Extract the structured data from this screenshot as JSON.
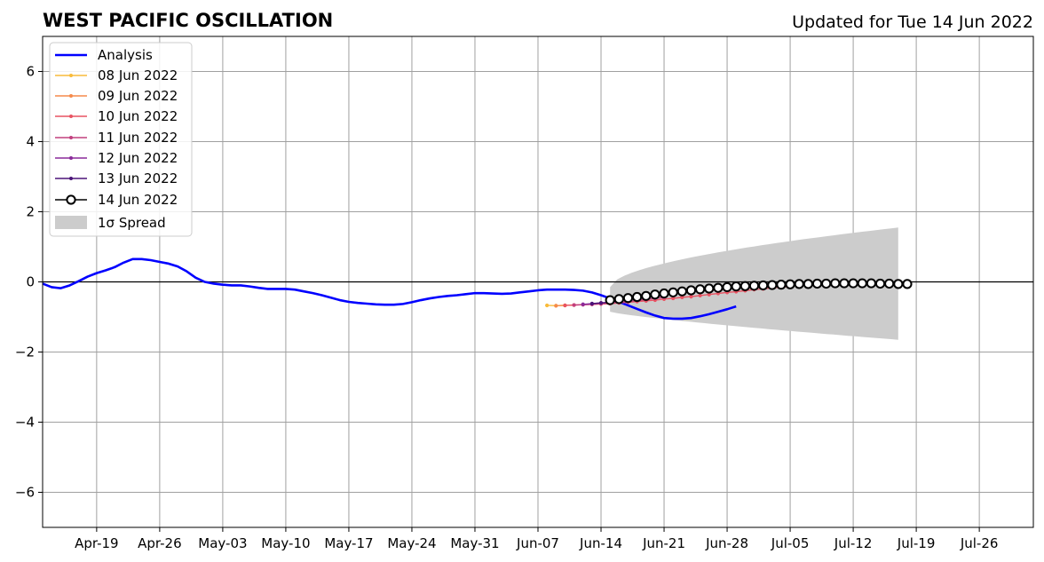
{
  "header": {
    "title": "WEST PACIFIC OSCILLATION",
    "updated": "Updated for Tue 14 Jun 2022"
  },
  "chart_data": {
    "type": "line",
    "title": "WEST PACIFIC OSCILLATION",
    "xlabel": "",
    "ylabel": "",
    "x_range": [
      "2022-04-13",
      "2022-08-01"
    ],
    "ylim": [
      -7,
      7
    ],
    "x_ticks": [
      "Apr-19",
      "Apr-26",
      "May-03",
      "May-10",
      "May-17",
      "May-24",
      "May-31",
      "Jun-07",
      "Jun-14",
      "Jun-21",
      "Jun-28",
      "Jul-05",
      "Jul-12",
      "Jul-19",
      "Jul-26"
    ],
    "y_ticks": [
      "6",
      "4",
      "2",
      "0",
      "−2",
      "−4",
      "−6"
    ],
    "grid": true,
    "legend_position": "top-left",
    "analysis": {
      "name": "Analysis",
      "color": "#0000ff",
      "start": "2022-04-13",
      "values": [
        -0.05,
        -0.15,
        -0.18,
        -0.1,
        0.02,
        0.15,
        0.25,
        0.33,
        0.42,
        0.55,
        0.65,
        0.65,
        0.62,
        0.57,
        0.52,
        0.44,
        0.3,
        0.12,
        -0.0,
        -0.05,
        -0.08,
        -0.1,
        -0.1,
        -0.13,
        -0.17,
        -0.2,
        -0.2,
        -0.2,
        -0.22,
        -0.27,
        -0.32,
        -0.38,
        -0.45,
        -0.52,
        -0.57,
        -0.6,
        -0.62,
        -0.64,
        -0.65,
        -0.65,
        -0.63,
        -0.58,
        -0.52,
        -0.47,
        -0.43,
        -0.4,
        -0.38,
        -0.35,
        -0.32,
        -0.32,
        -0.33,
        -0.34,
        -0.33,
        -0.3,
        -0.27,
        -0.24,
        -0.22,
        -0.22,
        -0.22,
        -0.23,
        -0.25,
        -0.3,
        -0.38,
        -0.47,
        -0.57,
        -0.67,
        -0.77,
        -0.87,
        -0.96,
        -1.03,
        -1.05,
        -1.05,
        -1.03,
        -0.98,
        -0.92,
        -0.85,
        -0.78,
        -0.7
      ]
    },
    "forecasts": [
      {
        "name": "08 Jun 2022",
        "color": "#f9bb3a",
        "start": "2022-06-08",
        "values": [
          -0.67,
          -0.68,
          -0.67
        ]
      },
      {
        "name": "09 Jun 2022",
        "color": "#f58a4b",
        "start": "2022-06-09",
        "values": [
          -0.68,
          -0.67,
          -0.66
        ]
      },
      {
        "name": "10 Jun 2022",
        "color": "#e85362",
        "start": "2022-06-10",
        "values": [
          -0.67,
          -0.66,
          -0.65,
          -0.64,
          -0.63,
          -0.62,
          -0.6,
          -0.58,
          -0.56,
          -0.54,
          -0.52,
          -0.49,
          -0.47,
          -0.44,
          -0.42,
          -0.39,
          -0.36,
          -0.33,
          -0.3,
          -0.28,
          -0.25,
          -0.22,
          -0.2,
          -0.17,
          -0.15,
          -0.13
        ]
      },
      {
        "name": "11 Jun 2022",
        "color": "#c2407f",
        "start": "2022-06-11",
        "values": [
          -0.66,
          -0.65,
          -0.64,
          -0.62,
          -0.6,
          -0.58,
          -0.56,
          -0.53,
          -0.5,
          -0.47,
          -0.44
        ]
      },
      {
        "name": "12 Jun 2022",
        "color": "#8a2a9a",
        "start": "2022-06-12",
        "values": [
          -0.64,
          -0.62,
          -0.6,
          -0.58,
          -0.55
        ]
      },
      {
        "name": "13 Jun 2022",
        "color": "#4b1478",
        "start": "2022-06-13",
        "values": [
          -0.62,
          -0.6,
          -0.58
        ]
      }
    ],
    "current_forecast": {
      "name": "14 Jun 2022",
      "color": "#000000",
      "marker_fill": "#ffffff",
      "start": "2022-06-15",
      "values": [
        -0.52,
        -0.49,
        -0.46,
        -0.43,
        -0.4,
        -0.36,
        -0.33,
        -0.3,
        -0.27,
        -0.24,
        -0.21,
        -0.19,
        -0.17,
        -0.15,
        -0.13,
        -0.12,
        -0.11,
        -0.1,
        -0.09,
        -0.08,
        -0.07,
        -0.06,
        -0.06,
        -0.05,
        -0.05,
        -0.04,
        -0.04,
        -0.04,
        -0.04,
        -0.04,
        -0.05,
        -0.05,
        -0.06,
        -0.06
      ]
    },
    "spread": {
      "name": "1σ Spread",
      "color": "#cccccc",
      "start": "2022-06-15",
      "end": "2022-07-17",
      "upper_start": -0.15,
      "upper_end": 1.55,
      "lower_start": -0.85,
      "lower_end": -1.65
    },
    "legend": [
      "Analysis",
      "08 Jun 2022",
      "09 Jun 2022",
      "10 Jun 2022",
      "11 Jun 2022",
      "12 Jun 2022",
      "13 Jun 2022",
      "14 Jun 2022",
      "1σ Spread"
    ]
  }
}
